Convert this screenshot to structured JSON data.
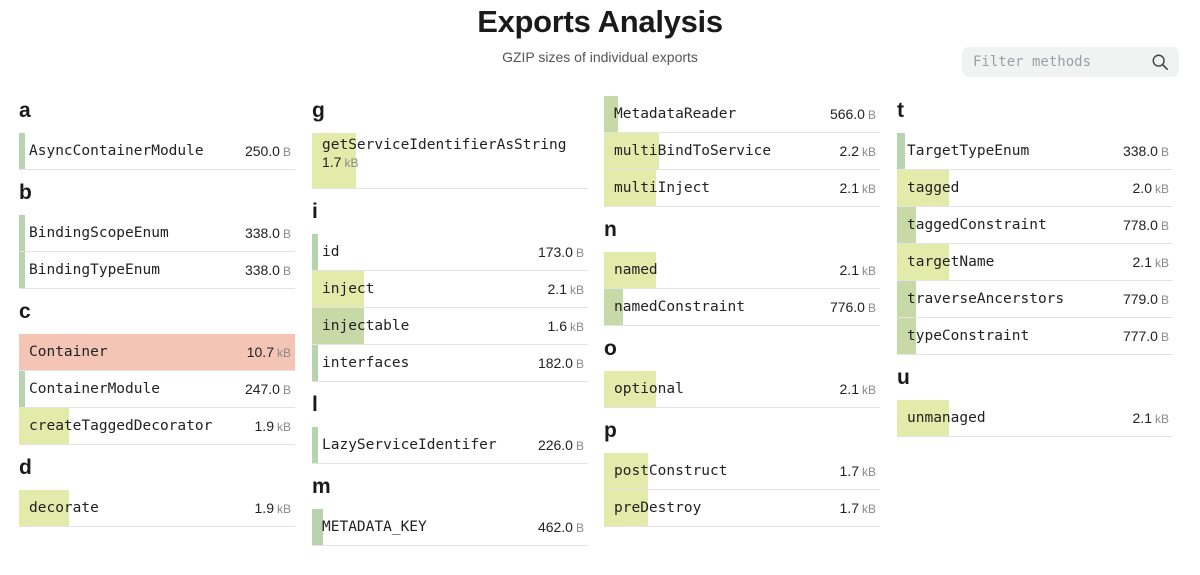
{
  "title": "Exports Analysis",
  "subtitle": "GZIP sizes of individual exports",
  "search": {
    "placeholder": "Filter methods",
    "icon": "search-icon"
  },
  "colors": {
    "small": "#b7d3b0",
    "medium": "#c6d9a7",
    "large": "#e2eba9",
    "huge": "#f4c4b4"
  },
  "columns": [
    {
      "groups": [
        {
          "letter": "a",
          "items": [
            {
              "name": "AsyncContainerModule",
              "size": "250.0",
              "unit": "B",
              "level": "small",
              "fill": 0.01
            }
          ]
        },
        {
          "letter": "b",
          "items": [
            {
              "name": "BindingScopeEnum",
              "size": "338.0",
              "unit": "B",
              "level": "small",
              "fill": 0.01
            },
            {
              "name": "BindingTypeEnum",
              "size": "338.0",
              "unit": "B",
              "level": "small",
              "fill": 0.01
            }
          ]
        },
        {
          "letter": "c",
          "items": [
            {
              "name": "Container",
              "size": "10.7",
              "unit": "kB",
              "level": "huge",
              "fill": 1.0
            },
            {
              "name": "ContainerModule",
              "size": "247.0",
              "unit": "B",
              "level": "small",
              "fill": 0.01
            },
            {
              "name": "createTaggedDecorator",
              "size": "1.9",
              "unit": "kB",
              "level": "large",
              "fill": 0.18
            }
          ]
        },
        {
          "letter": "d",
          "items": [
            {
              "name": "decorate",
              "size": "1.9",
              "unit": "kB",
              "level": "large",
              "fill": 0.18
            }
          ]
        }
      ]
    },
    {
      "groups": [
        {
          "letter": "g",
          "items": [
            {
              "name": "getServiceIdentifierAsString",
              "size": "1.7",
              "unit": "kB",
              "level": "large",
              "fill": 0.16,
              "tall": true
            }
          ]
        },
        {
          "letter": "i",
          "items": [
            {
              "name": "id",
              "size": "173.0",
              "unit": "B",
              "level": "small",
              "fill": 0.01
            },
            {
              "name": "inject",
              "size": "2.1",
              "unit": "kB",
              "level": "large",
              "fill": 0.19
            },
            {
              "name": "injectable",
              "size": "1.6",
              "unit": "kB",
              "level": "medium",
              "fill": 0.19
            },
            {
              "name": "interfaces",
              "size": "182.0",
              "unit": "B",
              "level": "small",
              "fill": 0.01
            }
          ]
        },
        {
          "letter": "l",
          "items": [
            {
              "name": "LazyServiceIdentifer",
              "size": "226.0",
              "unit": "B",
              "level": "small",
              "fill": 0.01
            }
          ]
        },
        {
          "letter": "m",
          "items": [
            {
              "name": "METADATA_KEY",
              "size": "462.0",
              "unit": "B",
              "level": "small",
              "fill": 0.04
            }
          ]
        }
      ]
    },
    {
      "groups": [
        {
          "letter": "",
          "cont": true,
          "items": [
            {
              "name": "MetadataReader",
              "size": "566.0",
              "unit": "B",
              "level": "medium",
              "fill": 0.05
            },
            {
              "name": "multiBindToService",
              "size": "2.2",
              "unit": "kB",
              "level": "large",
              "fill": 0.2
            },
            {
              "name": "multiInject",
              "size": "2.1",
              "unit": "kB",
              "level": "large",
              "fill": 0.19
            }
          ]
        },
        {
          "letter": "n",
          "items": [
            {
              "name": "named",
              "size": "2.1",
              "unit": "kB",
              "level": "large",
              "fill": 0.19
            },
            {
              "name": "namedConstraint",
              "size": "776.0",
              "unit": "B",
              "level": "medium",
              "fill": 0.07
            }
          ]
        },
        {
          "letter": "o",
          "items": [
            {
              "name": "optional",
              "size": "2.1",
              "unit": "kB",
              "level": "large",
              "fill": 0.19
            }
          ]
        },
        {
          "letter": "p",
          "items": [
            {
              "name": "postConstruct",
              "size": "1.7",
              "unit": "kB",
              "level": "large",
              "fill": 0.16
            },
            {
              "name": "preDestroy",
              "size": "1.7",
              "unit": "kB",
              "level": "large",
              "fill": 0.16
            }
          ]
        }
      ]
    },
    {
      "groups": [
        {
          "letter": "t",
          "items": [
            {
              "name": "TargetTypeEnum",
              "size": "338.0",
              "unit": "B",
              "level": "small",
              "fill": 0.03
            },
            {
              "name": "tagged",
              "size": "2.0",
              "unit": "kB",
              "level": "large",
              "fill": 0.19
            },
            {
              "name": "taggedConstraint",
              "size": "778.0",
              "unit": "B",
              "level": "medium",
              "fill": 0.07
            },
            {
              "name": "targetName",
              "size": "2.1",
              "unit": "kB",
              "level": "large",
              "fill": 0.19
            },
            {
              "name": "traverseAncerstors",
              "size": "779.0",
              "unit": "B",
              "level": "medium",
              "fill": 0.07
            },
            {
              "name": "typeConstraint",
              "size": "777.0",
              "unit": "B",
              "level": "medium",
              "fill": 0.07
            }
          ]
        },
        {
          "letter": "u",
          "items": [
            {
              "name": "unmanaged",
              "size": "2.1",
              "unit": "kB",
              "level": "large",
              "fill": 0.19
            }
          ]
        }
      ]
    }
  ]
}
